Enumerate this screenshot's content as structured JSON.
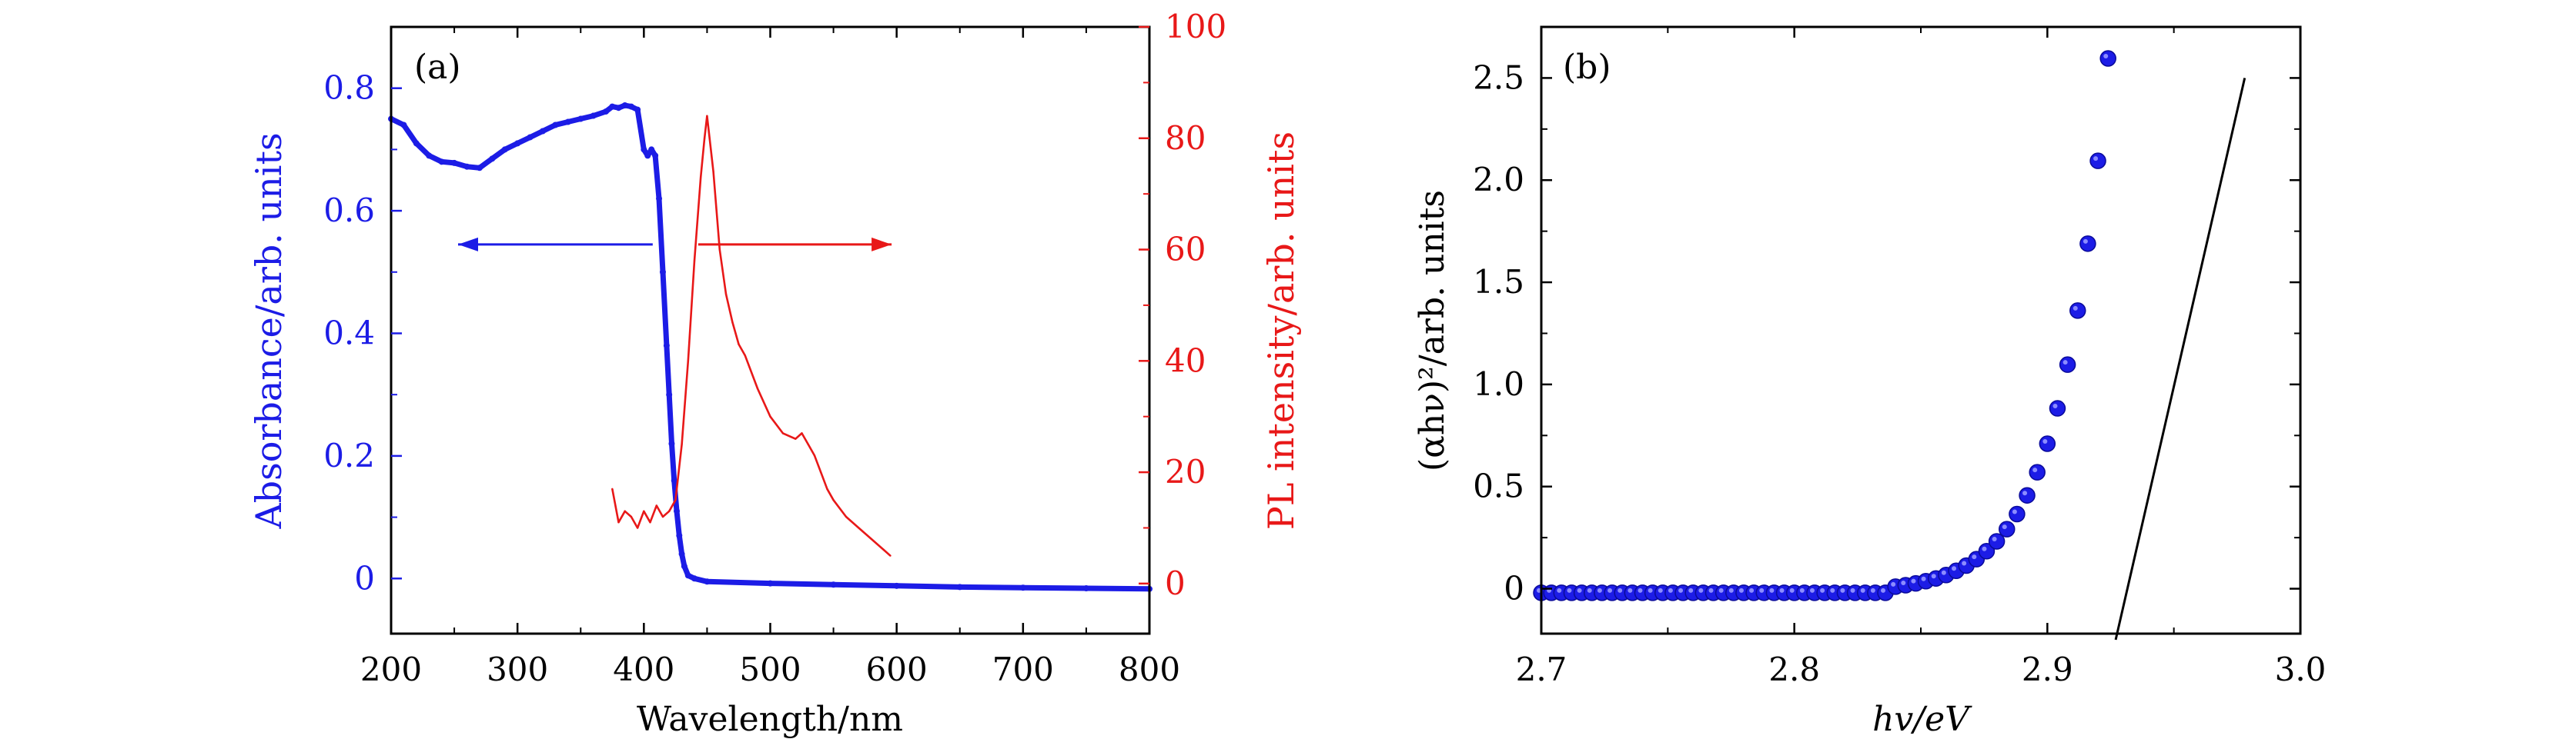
{
  "colors": {
    "absorbance": "#1c1ce6",
    "pl": "#e81818",
    "axis": "#000000",
    "fit_line": "#000000"
  },
  "chart_data": [
    {
      "type": "line",
      "panel_label": "(a)",
      "xlabel": "Wavelength/nm",
      "ylabel_left": "Absorbance/arb. units",
      "ylabel_right": "PL intensity/arb. units",
      "xlim": [
        200,
        800
      ],
      "ylim_left": [
        -0.09,
        0.9
      ],
      "ylim_right": [
        -9,
        100
      ],
      "xticks": [
        200,
        300,
        400,
        500,
        600,
        700,
        800
      ],
      "xtick_labels": [
        "200",
        "300",
        "400",
        "500",
        "600",
        "700",
        "800"
      ],
      "yticks_left": [
        0,
        0.2,
        0.4,
        0.6,
        0.8
      ],
      "ytick_labels_left": [
        "0",
        "0.2",
        "0.4",
        "0.6",
        "0.8"
      ],
      "yticks_right": [
        0,
        20,
        40,
        60,
        80,
        100
      ],
      "ytick_labels_right": [
        "0",
        "20",
        "40",
        "60",
        "80",
        "100"
      ],
      "series": [
        {
          "axis": "left",
          "color": "#1c1ce6",
          "x": [
            200,
            210,
            220,
            230,
            240,
            250,
            260,
            270,
            280,
            290,
            300,
            310,
            320,
            330,
            340,
            350,
            360,
            370,
            375,
            380,
            385,
            390,
            395,
            400,
            403,
            406,
            409,
            412,
            415,
            418,
            420,
            422,
            424,
            426,
            428,
            430,
            432,
            435,
            440,
            450,
            500,
            550,
            600,
            650,
            700,
            750,
            800
          ],
          "y": [
            0.75,
            0.74,
            0.71,
            0.69,
            0.68,
            0.678,
            0.672,
            0.67,
            0.685,
            0.7,
            0.71,
            0.72,
            0.73,
            0.74,
            0.745,
            0.75,
            0.755,
            0.762,
            0.77,
            0.768,
            0.772,
            0.77,
            0.765,
            0.7,
            0.69,
            0.7,
            0.69,
            0.62,
            0.5,
            0.38,
            0.3,
            0.22,
            0.16,
            0.11,
            0.07,
            0.04,
            0.02,
            0.005,
            0.0,
            -0.005,
            -0.008,
            -0.01,
            -0.012,
            -0.014,
            -0.015,
            -0.016,
            -0.017
          ]
        },
        {
          "axis": "right",
          "color": "#e81818",
          "x": [
            375,
            380,
            385,
            390,
            395,
            400,
            405,
            410,
            415,
            420,
            425,
            430,
            435,
            440,
            445,
            448,
            450,
            452,
            455,
            460,
            465,
            470,
            475,
            480,
            490,
            500,
            510,
            520,
            525,
            530,
            535,
            540,
            545,
            550,
            560,
            570,
            580,
            590,
            595
          ],
          "y": [
            17,
            11,
            13,
            12,
            10,
            13,
            11,
            14,
            12,
            13,
            15,
            25,
            40,
            58,
            73,
            80,
            84,
            80,
            74,
            60,
            52,
            47,
            43,
            41,
            35,
            30,
            27,
            26,
            27,
            25,
            23,
            20,
            17,
            15,
            12,
            10,
            8,
            6,
            5
          ]
        }
      ],
      "annotations": [
        {
          "type": "arrow",
          "direction": "left",
          "color": "#1c1ce6",
          "from": [
            407,
            0.545
          ],
          "to": [
            253,
            0.545
          ]
        },
        {
          "type": "arrow",
          "direction": "right",
          "color": "#e81818",
          "from": [
            443,
            0.545
          ],
          "to": [
            596,
            0.545
          ]
        }
      ]
    },
    {
      "type": "scatter",
      "panel_label": "(b)",
      "xlabel": "hv/eV",
      "ylabel": "(αhν)²/arb. units",
      "xlim": [
        2.7,
        3.0
      ],
      "ylim": [
        -0.22,
        2.75
      ],
      "xticks": [
        2.7,
        2.8,
        2.9,
        3.0
      ],
      "xtick_labels": [
        "2.7",
        "2.8",
        "2.9",
        "3.0"
      ],
      "yticks": [
        0,
        0.5,
        1.0,
        1.5,
        2.0,
        2.5
      ],
      "ytick_labels": [
        "0",
        "0.5",
        "1.0",
        "1.5",
        "2.0",
        "2.5"
      ],
      "marker_color": "#1c1ce6",
      "points": {
        "x_start": 2.7,
        "x_end": 2.98,
        "step": 0.004
      },
      "fit_line": {
        "x1": 2.927,
        "y1": -0.25,
        "x2": 2.978,
        "y2": 2.5
      }
    }
  ]
}
